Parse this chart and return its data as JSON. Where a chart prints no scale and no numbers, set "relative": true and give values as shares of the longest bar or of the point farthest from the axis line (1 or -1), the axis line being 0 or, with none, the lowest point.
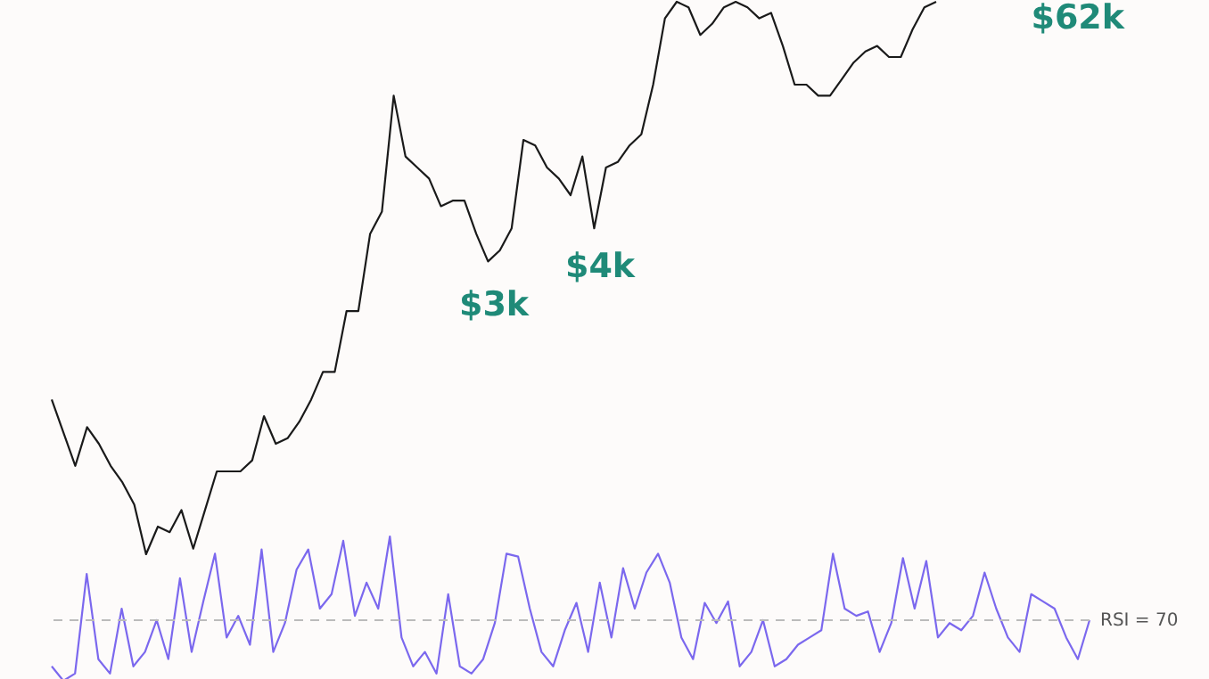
{
  "chart_data": [
    {
      "type": "line",
      "relative": true,
      "tick_labels": false,
      "categories": [
        null,
        null,
        null,
        null,
        null,
        null,
        null,
        null,
        null,
        null,
        null,
        null,
        null,
        null,
        null,
        null,
        null,
        null,
        null,
        null,
        null,
        null,
        null,
        null,
        null,
        null,
        null,
        null,
        null,
        null,
        null,
        null,
        null,
        null,
        null,
        null,
        null,
        null,
        null,
        null,
        null,
        null,
        null,
        null,
        null,
        null,
        null,
        null,
        null,
        null,
        null,
        null,
        null,
        null,
        null,
        null,
        null,
        null,
        null,
        null,
        null,
        null,
        null,
        null,
        null,
        null,
        null,
        null,
        null,
        null,
        null,
        null,
        null,
        null,
        null,
        null
      ],
      "series": [
        {
          "color": "#1a1a1a",
          "values": [
            0.28,
            0.22,
            0.16,
            0.23,
            0.2,
            0.16,
            0.13,
            0.09,
            0.0,
            0.05,
            0.04,
            0.08,
            0.01,
            0.08,
            0.15,
            0.15,
            0.15,
            0.17,
            0.25,
            0.2,
            0.21,
            0.24,
            0.28,
            0.33,
            0.33,
            0.44,
            0.44,
            0.58,
            0.62,
            0.83,
            0.72,
            0.7,
            0.68,
            0.63,
            0.64,
            0.64,
            0.58,
            0.53,
            0.55,
            0.59,
            0.75,
            0.74,
            0.7,
            0.68,
            0.65,
            0.72,
            0.59,
            0.7,
            0.71,
            0.74,
            0.76,
            0.85,
            0.97,
            1.0,
            0.99,
            0.94,
            0.96,
            0.99,
            1.0,
            0.99,
            0.97,
            0.98,
            0.92,
            0.85,
            0.85,
            0.83,
            0.83,
            0.86,
            0.89,
            0.91,
            0.92,
            0.9,
            0.9,
            0.95,
            0.99,
            1.0
          ]
        }
      ],
      "annotations": [
        "$3k",
        "$4k",
        "$62k"
      ]
    },
    {
      "type": "line",
      "relative": true,
      "tick_labels": false,
      "categories": [
        null,
        null,
        null,
        null,
        null,
        null,
        null,
        null,
        null,
        null,
        null,
        null,
        null,
        null,
        null,
        null,
        null,
        null,
        null,
        null,
        null,
        null,
        null,
        null,
        null,
        null,
        null,
        null,
        null,
        null,
        null,
        null,
        null,
        null,
        null,
        null,
        null,
        null,
        null,
        null,
        null,
        null,
        null,
        null,
        null,
        null,
        null,
        null,
        null,
        null,
        null,
        null,
        null,
        null,
        null,
        null,
        null,
        null,
        null,
        null,
        null,
        null,
        null,
        null,
        null,
        null,
        null,
        null,
        null,
        null,
        null,
        null,
        null,
        null,
        null,
        null,
        null,
        null,
        null,
        null,
        null,
        null,
        null,
        null,
        null,
        null,
        null,
        null,
        null,
        null
      ],
      "series": [
        {
          "color": "#7b68ee",
          "values": [
            0.1,
            0.0,
            0.05,
            0.74,
            0.15,
            0.05,
            0.5,
            0.1,
            0.2,
            0.42,
            0.15,
            0.71,
            0.2,
            0.55,
            0.88,
            0.3,
            0.45,
            0.25,
            0.91,
            0.2,
            0.4,
            0.77,
            0.91,
            0.5,
            0.6,
            0.97,
            0.45,
            0.68,
            0.5,
            1.0,
            0.3,
            0.1,
            0.2,
            0.05,
            0.6,
            0.1,
            0.05,
            0.15,
            0.4,
            0.88,
            0.86,
            0.5,
            0.2,
            0.1,
            0.35,
            0.54,
            0.2,
            0.68,
            0.3,
            0.78,
            0.5,
            0.75,
            0.88,
            0.68,
            0.3,
            0.15,
            0.54,
            0.4,
            0.55,
            0.1,
            0.2,
            0.42,
            0.1,
            0.15,
            0.25,
            0.3,
            0.35,
            0.88,
            0.5,
            0.45,
            0.48,
            0.2,
            0.4,
            0.85,
            0.5,
            0.83,
            0.3,
            0.4,
            0.35,
            0.45,
            0.75,
            0.5,
            0.3,
            0.2,
            0.6,
            0.55,
            0.5,
            0.3,
            0.15,
            0.42
          ]
        }
      ],
      "ref_lines": [
        {
          "axis": "y",
          "value": 0.42,
          "color": "#bbbbbb",
          "line_style": "dashed"
        }
      ],
      "annotations": [
        "RSI = 70"
      ]
    }
  ]
}
